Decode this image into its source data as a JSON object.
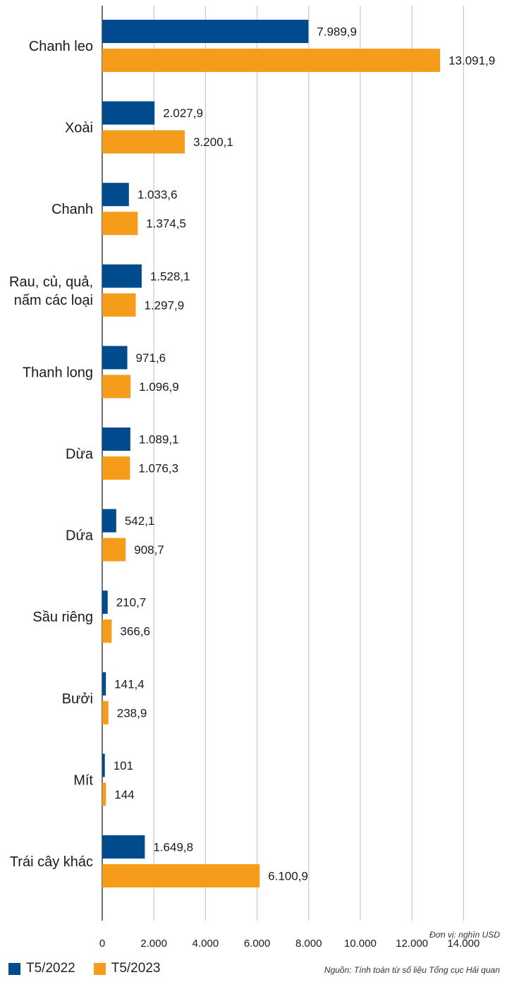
{
  "chart_data": {
    "type": "bar",
    "orientation": "horizontal",
    "categories": [
      "Chanh leo",
      "Xoài",
      "Chanh",
      [
        "Rau, củ, quả,",
        "nấm các loại"
      ],
      "Thanh long",
      "Dừa",
      "Dứa",
      "Sầu riêng",
      "Bưởi",
      "Mít",
      "Trái cây khác"
    ],
    "series": [
      {
        "name": "T5/2022",
        "color": "#004b8d",
        "values": [
          7989.9,
          2027.9,
          1033.6,
          1528.1,
          971.6,
          1089.1,
          542.1,
          210.7,
          141.4,
          101,
          1649.8
        ],
        "labels": [
          "7.989,9",
          "2.027,9",
          "1.033,6",
          "1.528,1",
          "971,6",
          "1.089,1",
          "542,1",
          "210,7",
          "141,4",
          "101",
          "1.649,8"
        ]
      },
      {
        "name": "T5/2023",
        "color": "#f59c1a",
        "values": [
          13091.9,
          3200.1,
          1374.5,
          1297.9,
          1096.9,
          1076.3,
          908.7,
          366.6,
          238.9,
          144,
          6100.9
        ],
        "labels": [
          "13.091,9",
          "3.200,1",
          "1.374,5",
          "1.297,9",
          "1.096,9",
          "1.076,3",
          "908,7",
          "366,6",
          "238,9",
          "144",
          "6.100,9"
        ]
      }
    ],
    "xlim": [
      0,
      14000
    ],
    "xticks": [
      0,
      2000,
      4000,
      6000,
      8000,
      10000,
      12000,
      14000
    ],
    "xtick_labels": [
      "0",
      "2.000",
      "4.000",
      "6.000",
      "8.000",
      "10.000",
      "12.000",
      "14.000"
    ],
    "grid": true,
    "legend_position": "bottom-left",
    "unit_note": "Đơn vị: nghìn USD",
    "source_note": "Nguồn: Tính toán từ số liệu Tổng cục Hải quan"
  }
}
